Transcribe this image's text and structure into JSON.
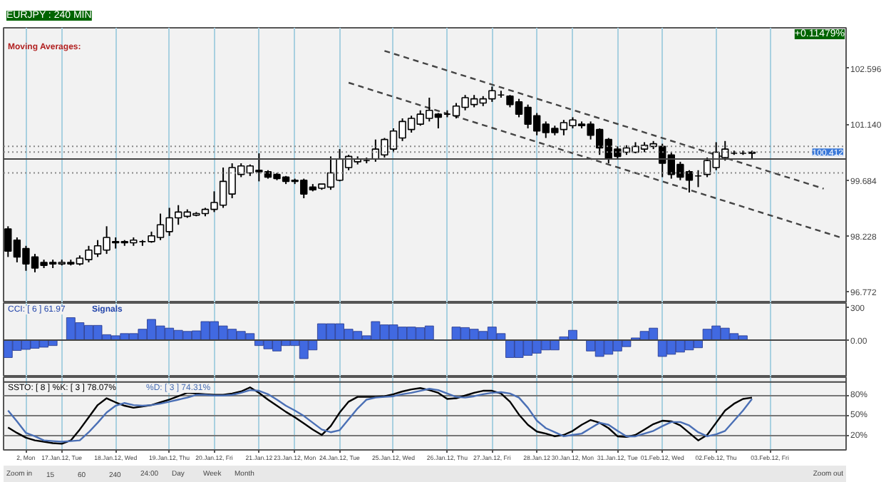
{
  "chart_data": [
    {
      "type": "candlestick",
      "title": "EURJPY : 240 MIN",
      "annotations": [
        "+0.11479%",
        "Moving Averages:"
      ],
      "categories": [
        null,
        null,
        null,
        null,
        null,
        null,
        null,
        null,
        null,
        null,
        null,
        null,
        null,
        null,
        null,
        null,
        null,
        null,
        null,
        null,
        null,
        null,
        null,
        null,
        null,
        null,
        null,
        null,
        null,
        null,
        null,
        null,
        null,
        null,
        null,
        null,
        null,
        null,
        null,
        null,
        null,
        null,
        null,
        null,
        null,
        null,
        null,
        null,
        null,
        null,
        null,
        null,
        null,
        null,
        null,
        null,
        null,
        null,
        null,
        null,
        null,
        null,
        null,
        null,
        null,
        null,
        null,
        null,
        null,
        null,
        null,
        null,
        null,
        null,
        null,
        null,
        null,
        null,
        null,
        null,
        null,
        null,
        null,
        null,
        null,
        null,
        null,
        null,
        null,
        null,
        null,
        null,
        null,
        null
      ],
      "ohlc": [
        [
          98.41,
          98.48,
          97.68,
          97.83
        ],
        [
          98.12,
          98.19,
          97.54,
          97.68
        ],
        [
          97.9,
          97.97,
          97.32,
          97.5
        ],
        [
          97.68,
          97.76,
          97.28,
          97.39
        ],
        [
          97.54,
          97.61,
          97.39,
          97.46
        ],
        [
          97.54,
          97.61,
          97.39,
          97.5
        ],
        [
          97.5,
          97.61,
          97.46,
          97.54
        ],
        [
          97.54,
          97.61,
          97.46,
          97.5
        ],
        [
          97.5,
          97.72,
          97.46,
          97.65
        ],
        [
          97.61,
          97.97,
          97.54,
          97.86
        ],
        [
          97.76,
          98.12,
          97.68,
          97.97
        ],
        [
          97.86,
          98.48,
          97.76,
          98.19
        ],
        [
          98.05,
          98.19,
          97.9,
          98.08
        ],
        [
          98.08,
          98.12,
          97.97,
          98.05
        ],
        [
          98.05,
          98.19,
          97.97,
          98.12
        ],
        [
          98.08,
          98.12,
          97.97,
          98.08
        ],
        [
          98.08,
          98.34,
          98.05,
          98.23
        ],
        [
          98.19,
          98.81,
          98.12,
          98.52
        ],
        [
          98.34,
          98.96,
          98.23,
          98.7
        ],
        [
          98.7,
          99.03,
          98.52,
          98.85
        ],
        [
          98.74,
          98.92,
          98.7,
          98.85
        ],
        [
          98.77,
          98.85,
          98.74,
          98.81
        ],
        [
          98.81,
          98.96,
          98.74,
          98.92
        ],
        [
          98.92,
          99.39,
          98.85,
          99.1
        ],
        [
          99.03,
          100.01,
          98.96,
          99.65
        ],
        [
          99.32,
          100.12,
          99.21,
          100.01
        ],
        [
          99.83,
          100.12,
          99.76,
          100.05
        ],
        [
          99.87,
          100.09,
          99.79,
          100.05
        ],
        [
          99.94,
          100.38,
          99.65,
          99.9
        ],
        [
          99.9,
          99.94,
          99.72,
          99.76
        ],
        [
          99.83,
          99.87,
          99.68,
          99.72
        ],
        [
          99.76,
          99.79,
          99.58,
          99.65
        ],
        [
          99.68,
          99.72,
          99.58,
          99.65
        ],
        [
          99.68,
          99.72,
          99.21,
          99.32
        ],
        [
          99.5,
          99.58,
          99.39,
          99.43
        ],
        [
          99.47,
          99.58,
          99.43,
          99.58
        ],
        [
          99.5,
          100.3,
          99.43,
          99.87
        ],
        [
          99.68,
          100.49,
          99.65,
          100.23
        ],
        [
          100.01,
          100.34,
          99.94,
          100.3
        ],
        [
          100.16,
          100.3,
          100.09,
          100.23
        ],
        [
          100.19,
          100.27,
          100.12,
          100.19
        ],
        [
          100.23,
          100.74,
          100.16,
          100.49
        ],
        [
          100.34,
          100.78,
          100.27,
          100.74
        ],
        [
          100.49,
          101.03,
          100.41,
          100.96
        ],
        [
          100.78,
          101.29,
          100.7,
          101.21
        ],
        [
          101.0,
          101.36,
          100.92,
          101.29
        ],
        [
          101.14,
          101.5,
          101.1,
          101.4
        ],
        [
          101.29,
          101.83,
          101.21,
          101.5
        ],
        [
          101.4,
          101.43,
          101.03,
          101.32
        ],
        [
          101.4,
          101.5,
          101.32,
          101.4
        ],
        [
          101.36,
          101.69,
          101.29,
          101.61
        ],
        [
          101.58,
          101.9,
          101.5,
          101.83
        ],
        [
          101.65,
          101.9,
          101.58,
          101.8
        ],
        [
          101.69,
          101.87,
          101.61,
          101.8
        ],
        [
          101.8,
          102.12,
          101.72,
          102.01
        ],
        [
          101.9,
          102.01,
          101.83,
          101.9
        ],
        [
          101.87,
          101.9,
          101.58,
          101.65
        ],
        [
          101.72,
          101.8,
          101.32,
          101.4
        ],
        [
          101.58,
          101.65,
          101.03,
          101.14
        ],
        [
          101.36,
          101.43,
          100.85,
          100.96
        ],
        [
          101.14,
          101.21,
          100.78,
          100.92
        ],
        [
          101.03,
          101.1,
          100.85,
          100.92
        ],
        [
          101.0,
          101.25,
          100.85,
          101.18
        ],
        [
          101.1,
          101.32,
          101.03,
          101.25
        ],
        [
          101.14,
          101.21,
          101.03,
          101.1
        ],
        [
          101.14,
          101.21,
          100.74,
          100.85
        ],
        [
          101.0,
          101.03,
          100.34,
          100.52
        ],
        [
          100.74,
          100.78,
          100.12,
          100.23
        ],
        [
          100.49,
          100.56,
          100.23,
          100.3
        ],
        [
          100.41,
          100.59,
          100.34,
          100.52
        ],
        [
          100.41,
          100.67,
          100.38,
          100.56
        ],
        [
          100.49,
          100.67,
          100.41,
          100.59
        ],
        [
          100.56,
          100.7,
          100.49,
          100.63
        ],
        [
          100.56,
          100.63,
          99.76,
          100.12
        ],
        [
          100.34,
          100.41,
          99.72,
          99.83
        ],
        [
          100.09,
          100.16,
          99.68,
          99.76
        ],
        [
          99.9,
          99.94,
          99.36,
          99.68
        ],
        [
          99.79,
          99.94,
          99.5,
          99.79
        ],
        [
          99.83,
          100.27,
          99.76,
          100.19
        ],
        [
          100.01,
          100.67,
          99.94,
          100.41
        ],
        [
          100.27,
          100.7,
          100.19,
          100.49
        ],
        [
          100.38,
          100.45,
          100.34,
          100.38
        ],
        [
          100.38,
          100.45,
          100.34,
          100.38
        ],
        [
          100.38,
          100.45,
          100.23,
          100.41
        ],
        null,
        null,
        null,
        null,
        null,
        null,
        null,
        null,
        null,
        null
      ],
      "series": [
        {
          "type": "line",
          "values": [
            null,
            null,
            null,
            null,
            null,
            null,
            null,
            null,
            null,
            null,
            null,
            null,
            null,
            null,
            null,
            null,
            null,
            null,
            null,
            null,
            null,
            null,
            null,
            null,
            null,
            null,
            null,
            null,
            null,
            null,
            null,
            null,
            null,
            null,
            null,
            null,
            null,
            null,
            null,
            null,
            null,
            null,
            103.05,
            null,
            null,
            null,
            null,
            null,
            null,
            null,
            null,
            null,
            null,
            null,
            null,
            null,
            null,
            null,
            null,
            null,
            null,
            null,
            null,
            null,
            null,
            null,
            null,
            null,
            null,
            null,
            null,
            null,
            null,
            null,
            null,
            null,
            null,
            null,
            null,
            null,
            null,
            null,
            null,
            null,
            null,
            null,
            null,
            null,
            null,
            null,
            null,
            99.46,
            null,
            null
          ],
          "color": "#444444",
          "line_style": "dashed"
        },
        {
          "type": "line",
          "values": [
            null,
            null,
            null,
            null,
            null,
            null,
            null,
            null,
            null,
            null,
            null,
            null,
            null,
            null,
            null,
            null,
            null,
            null,
            null,
            null,
            null,
            null,
            null,
            null,
            null,
            null,
            null,
            null,
            null,
            null,
            null,
            null,
            null,
            null,
            null,
            null,
            null,
            null,
            102.22,
            null,
            null,
            null,
            null,
            null,
            null,
            null,
            null,
            null,
            null,
            null,
            null,
            null,
            null,
            null,
            null,
            null,
            null,
            null,
            null,
            null,
            null,
            null,
            null,
            null,
            null,
            null,
            null,
            null,
            null,
            null,
            null,
            null,
            null,
            null,
            null,
            null,
            null,
            null,
            null,
            null,
            null,
            null,
            null,
            null,
            null,
            null,
            null,
            null,
            null,
            null,
            null,
            null,
            null,
            98.18
          ],
          "color": "#444444",
          "line_style": "dashed"
        }
      ],
      "ref_lines": [
        {
          "axis": "y",
          "value": 100.56,
          "color": "#888888",
          "line_style": "dotted"
        },
        {
          "axis": "y",
          "value": 100.412,
          "label": "100.412",
          "color": "#888888",
          "line_style": "dotted"
        },
        {
          "axis": "y",
          "value": 100.23,
          "color": "#444444",
          "line_style": "solid"
        },
        {
          "axis": "y",
          "value": 99.87,
          "color": "#888888",
          "line_style": "dotted"
        }
      ],
      "ylim": [
        96.48,
        103.65
      ],
      "yticks": [
        96.772,
        98.228,
        {
          "value": 99.684,
          "label": "99.684"
        },
        {
          "value": 101.14,
          "label": "101.140"
        },
        102.596
      ],
      "grid": "x",
      "tick_labels": "y"
    },
    {
      "type": "bar",
      "title": "CCI: [ 6 ] 61.97",
      "annotations": [
        "Signals"
      ],
      "color": "#4169e1",
      "categories": [
        null,
        null,
        null,
        null,
        null,
        null,
        null,
        null,
        null,
        null,
        null,
        null,
        null,
        null,
        null,
        null,
        null,
        null,
        null,
        null,
        null,
        null,
        null,
        null,
        null,
        null,
        null,
        null,
        null,
        null,
        null,
        null,
        null,
        null,
        null,
        null,
        null,
        null,
        null,
        null,
        null,
        null,
        null,
        null,
        null,
        null,
        null,
        null,
        null,
        null,
        null,
        null,
        null,
        null,
        null,
        null,
        null,
        null,
        null,
        null,
        null,
        null,
        null,
        null,
        null,
        null,
        null,
        null,
        null,
        null,
        null,
        null,
        null,
        null,
        null,
        null,
        null,
        null,
        null,
        null,
        null,
        null,
        null,
        null,
        null,
        null,
        null,
        null,
        null,
        null,
        null,
        null,
        null,
        null
      ],
      "values": [
        -160,
        -95,
        -85,
        -75,
        -65,
        -50,
        null,
        206,
        160,
        135,
        135,
        50,
        40,
        60,
        60,
        100,
        190,
        130,
        110,
        90,
        80,
        85,
        170,
        170,
        130,
        100,
        80,
        60,
        -50,
        -80,
        -100,
        -50,
        -50,
        -170,
        -90,
        150,
        150,
        150,
        100,
        80,
        40,
        170,
        140,
        140,
        120,
        120,
        115,
        130,
        null,
        null,
        120,
        115,
        100,
        80,
        120,
        60,
        -160,
        -160,
        -140,
        -120,
        -90,
        -90,
        30,
        90,
        null,
        -100,
        -150,
        -130,
        -100,
        -60,
        20,
        80,
        110,
        -150,
        -130,
        -110,
        -90,
        -70,
        100,
        130,
        110,
        60,
        40,
        null,
        null,
        null,
        null,
        null,
        null,
        null,
        null,
        null,
        null,
        null
      ],
      "ylim": [
        -340,
        340
      ],
      "yticks": [
        {
          "value": 0,
          "label": "0.00"
        },
        300
      ],
      "ref_lines": [
        {
          "axis": "y",
          "value": 0,
          "color": "#444444",
          "line_style": "solid"
        }
      ],
      "grid": "x",
      "tick_labels": "y"
    },
    {
      "type": "line",
      "title": "SSTO: [ 8 ] %K: [ 3 ] 78.07%",
      "annotations": [
        "%D: [ 3 ] 74.31%",
        "Zoom in",
        "Zoom out",
        "15",
        "60",
        "240",
        "24:00",
        "Day",
        "Week",
        "Month"
      ],
      "categories": [
        null,
        null,
        "2, Mon",
        null,
        null,
        null,
        "17.Jan.12, Tue",
        null,
        null,
        null,
        null,
        null,
        "18.Jan.12, Wed",
        null,
        null,
        null,
        null,
        null,
        "19.Jan.12, Thu",
        null,
        null,
        null,
        null,
        "20.Jan.12, Fri",
        null,
        null,
        null,
        null,
        "21.Jan.12",
        null,
        null,
        null,
        "23.Jan.12, Mon",
        null,
        null,
        null,
        null,
        "24.Jan.12, Tue",
        null,
        null,
        null,
        null,
        null,
        "25.Jan.12, Wed",
        null,
        null,
        null,
        null,
        null,
        "26.Jan.12, Thu",
        null,
        null,
        null,
        null,
        "27.Jan.12, Fri",
        null,
        null,
        null,
        null,
        "28.Jan.12",
        null,
        null,
        null,
        "30.Jan.12, Mon",
        null,
        null,
        null,
        null,
        "31.Jan.12, Tue",
        null,
        null,
        null,
        null,
        "01.Feb.12, Wed",
        null,
        null,
        null,
        null,
        null,
        "02.Feb.12, Thu",
        null,
        null,
        null,
        null,
        null,
        "03.Feb.12, Fri",
        null,
        null,
        null,
        null,
        null,
        null,
        null,
        null
      ],
      "series": [
        {
          "color": "#000000",
          "values": [
            33,
            25,
            18,
            14,
            12,
            10,
            9,
            14,
            30,
            48,
            66,
            76,
            70,
            65,
            62,
            64,
            66,
            70,
            74,
            79,
            84,
            83,
            82,
            81,
            81,
            83,
            86,
            92,
            84,
            74,
            65,
            56,
            48,
            39,
            30,
            22,
            35,
            55,
            71,
            78,
            78,
            78,
            79,
            82,
            86,
            89,
            91,
            88,
            84,
            75,
            76,
            80,
            84,
            87,
            87,
            83,
            71,
            52,
            37,
            27,
            24,
            20,
            22,
            28,
            37,
            44,
            40,
            32,
            20,
            19,
            22,
            30,
            38,
            43,
            42,
            36,
            25,
            14,
            22,
            40,
            58,
            68,
            75,
            77,
            null,
            null,
            null,
            null,
            null,
            null,
            null,
            null,
            null,
            null
          ]
        },
        {
          "color": "#4a6fb5",
          "values": [
            58,
            42,
            25,
            20,
            14,
            13,
            12,
            13,
            14,
            26,
            40,
            55,
            65,
            69,
            66,
            65,
            66,
            68,
            71,
            74,
            77,
            81,
            81,
            80,
            80,
            81,
            84,
            88,
            87,
            82,
            74,
            65,
            58,
            50,
            40,
            30,
            26,
            29,
            45,
            61,
            74,
            77,
            78,
            79,
            82,
            84,
            87,
            90,
            88,
            83,
            78,
            77,
            79,
            82,
            84,
            85,
            83,
            77,
            62,
            43,
            32,
            26,
            20,
            22,
            24,
            32,
            40,
            37,
            28,
            20,
            20,
            24,
            28,
            35,
            41,
            41,
            36,
            26,
            20,
            23,
            28,
            43,
            58,
            75,
            null,
            null,
            null,
            null,
            null,
            null,
            null,
            null,
            null,
            null
          ]
        }
      ],
      "ref_lines": [
        {
          "axis": "y",
          "value": 100,
          "color": "#444444",
          "line_style": "solid"
        }
      ],
      "ylim": [
        0,
        107
      ],
      "yticks": [
        {
          "value": 20,
          "label": "20%"
        },
        {
          "value": 50,
          "label": "50%"
        },
        {
          "value": 80,
          "label": "80%"
        }
      ],
      "grid": true
    }
  ]
}
